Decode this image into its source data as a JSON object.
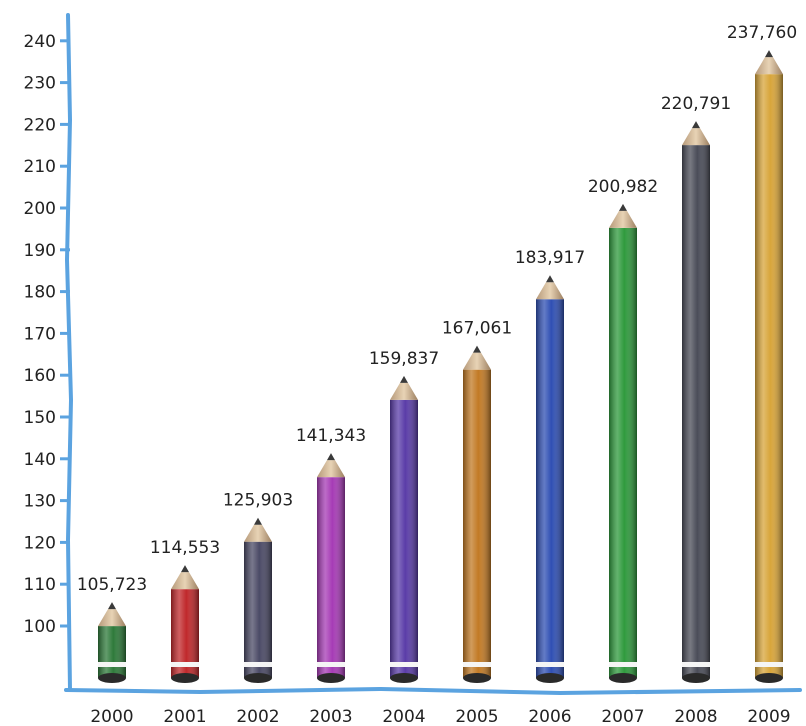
{
  "chart_data": {
    "type": "bar",
    "style": "pencils",
    "categories": [
      "2000",
      "2001",
      "2002",
      "2003",
      "2004",
      "2005",
      "2006",
      "2007",
      "2008",
      "2009"
    ],
    "values": [
      105.723,
      114.553,
      125.903,
      141.343,
      159.837,
      167.061,
      183.917,
      200.982,
      220.791,
      237.76
    ],
    "data_labels": [
      "105,723",
      "114,553",
      "125,903",
      "141,343",
      "159,837",
      "167,061",
      "183,917",
      "200,982",
      "220,791",
      "237,760"
    ],
    "colors": [
      "#2e7a3a",
      "#c0282b",
      "#4b4a66",
      "#a63bb5",
      "#5a3ca8",
      "#c27a25",
      "#2f4fb3",
      "#2f9a3d",
      "#4a4c58",
      "#d8a53a"
    ],
    "yticks": [
      "100",
      "110",
      "120",
      "130",
      "140",
      "150",
      "160",
      "170",
      "180",
      "190",
      "200",
      "210",
      "220",
      "230",
      "240"
    ],
    "ylim": [
      90,
      245
    ],
    "title": "",
    "xlabel": "",
    "ylabel": "",
    "axis_color": "#5ba3e0",
    "grid": false
  }
}
